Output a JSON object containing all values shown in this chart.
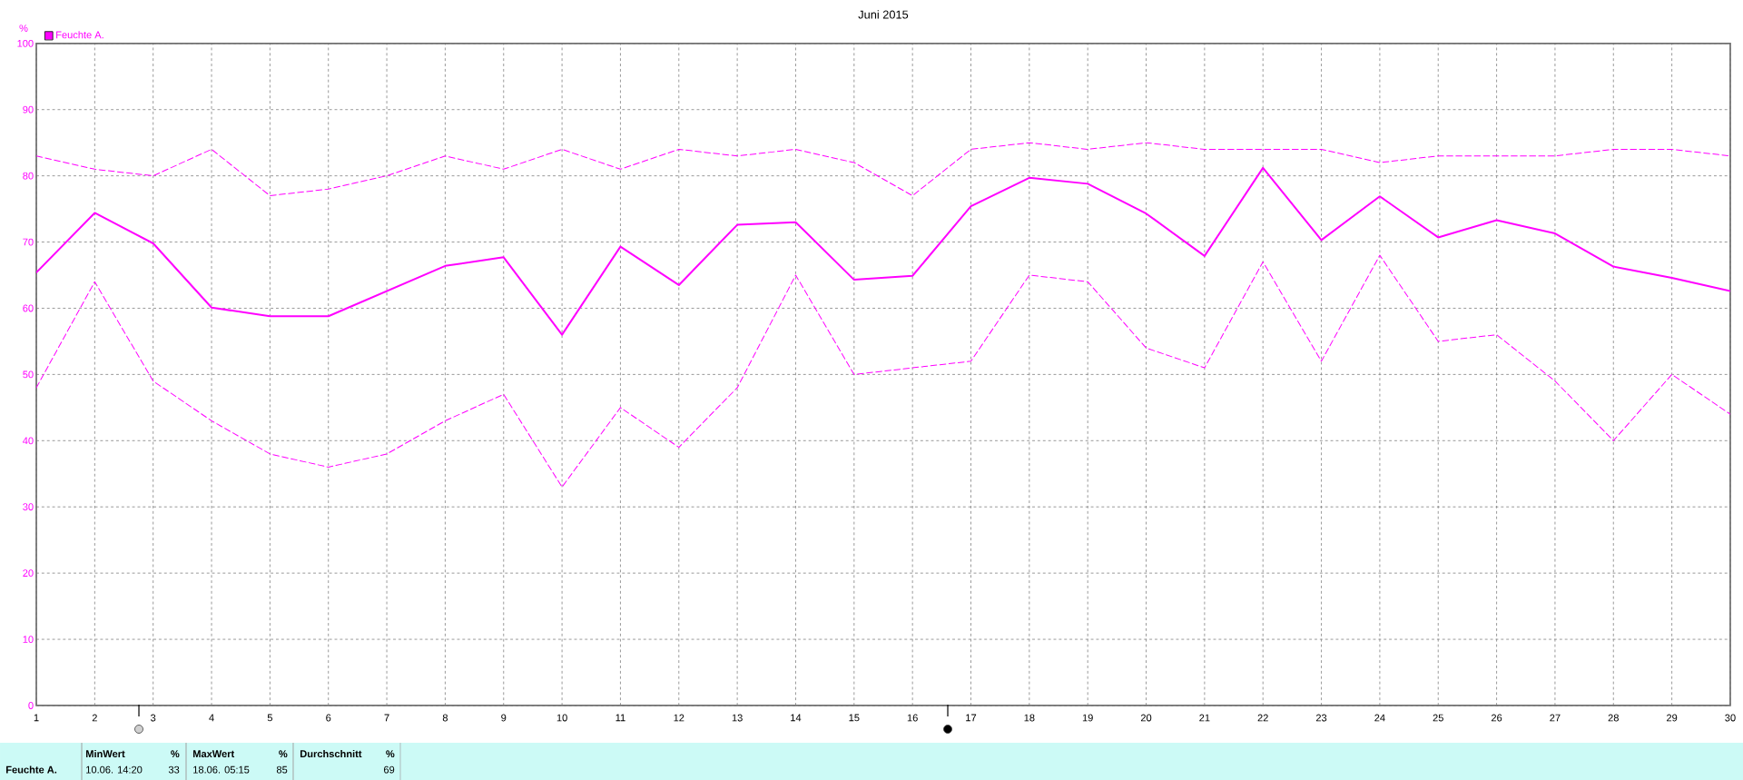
{
  "chart_data": {
    "type": "line",
    "title": "Juni 2015",
    "ylabel": "%",
    "x": [
      1,
      2,
      3,
      4,
      5,
      6,
      7,
      8,
      9,
      10,
      11,
      12,
      13,
      14,
      15,
      16,
      17,
      18,
      19,
      20,
      21,
      22,
      23,
      24,
      25,
      26,
      27,
      28,
      29,
      30
    ],
    "xlim": [
      1,
      30
    ],
    "xticks": [
      1,
      2,
      3,
      4,
      5,
      6,
      7,
      8,
      9,
      10,
      11,
      12,
      13,
      14,
      15,
      16,
      17,
      18,
      19,
      20,
      21,
      22,
      23,
      24,
      25,
      26,
      27,
      28,
      29,
      30
    ],
    "ylim": [
      0,
      100
    ],
    "yticks": [
      0,
      10,
      20,
      30,
      40,
      50,
      60,
      70,
      80,
      90,
      100
    ],
    "grid": true,
    "legend": "top left",
    "series": [
      {
        "name": "Feuchte A.",
        "color": "#ff00ff",
        "line_style": "solid",
        "values": [
          65.4,
          74.4,
          69.8,
          60.1,
          58.8,
          58.8,
          62.6,
          66.4,
          67.7,
          56.0,
          69.3,
          63.5,
          72.6,
          73.0,
          64.3,
          64.9,
          75.4,
          79.7,
          78.8,
          74.3,
          67.9,
          81.2,
          70.3,
          76.9,
          70.7,
          73.3,
          71.3,
          66.3,
          64.6,
          62.6
        ]
      },
      {
        "color": "#ff00ff",
        "line_style": "dashed",
        "values": [
          83,
          81,
          80,
          84,
          77,
          78,
          80,
          83,
          81,
          84,
          81,
          84,
          83,
          84,
          82,
          77,
          84,
          85,
          84,
          85,
          84,
          84,
          84,
          82,
          83,
          83,
          83,
          84,
          84,
          83
        ]
      },
      {
        "color": "#ff00ff",
        "line_style": "dashed",
        "values": [
          48,
          64,
          49,
          43,
          38,
          36,
          38,
          43,
          47,
          33,
          45,
          39,
          48,
          65,
          50,
          51,
          52,
          65,
          64,
          54,
          51,
          67,
          52,
          68,
          55,
          56,
          49,
          40,
          50,
          44
        ]
      }
    ],
    "annotations": [
      "Feuchte A.",
      "MinWert",
      "%",
      "10.06. 14:20",
      "33",
      "MaxWert",
      "%",
      "18.06. 05:15",
      "85",
      "Durchschnitt",
      "%",
      "69"
    ]
  }
}
